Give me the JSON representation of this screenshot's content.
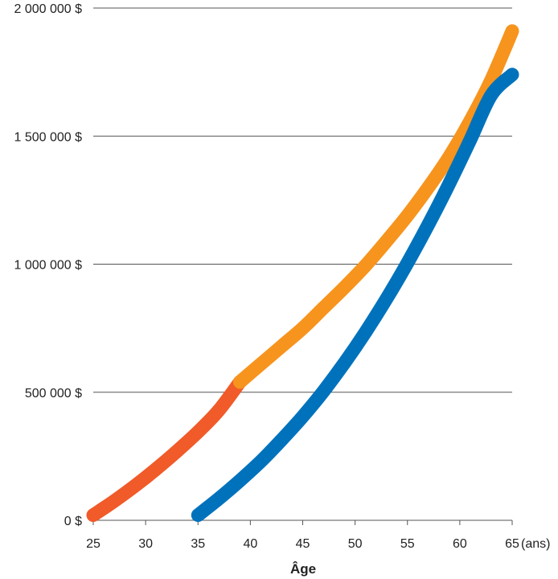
{
  "chart_data": {
    "type": "line",
    "title": "",
    "xlabel": "Âge",
    "ylabel": "",
    "x_unit_label": "(ans)",
    "xlim": [
      25,
      65
    ],
    "ylim": [
      0,
      2000000
    ],
    "x_ticks": [
      25,
      30,
      35,
      40,
      45,
      50,
      55,
      60,
      65
    ],
    "x_tick_labels": [
      "25",
      "30",
      "35",
      "40",
      "45",
      "50",
      "55",
      "60",
      "65"
    ],
    "y_ticks": [
      0,
      500000,
      1000000,
      1500000,
      2000000
    ],
    "y_tick_labels": [
      "0 $",
      "500 000 $",
      "1 000 000 $",
      "1 500 000 $",
      "2 000 000 $"
    ],
    "grid": "horizontal",
    "legend": "none",
    "series": [
      {
        "color": "#f15a29",
        "x": [
          25,
          27,
          29,
          31,
          33,
          35,
          37,
          39
        ],
        "y": [
          20000,
          75000,
          135000,
          200000,
          270000,
          345000,
          430000,
          540000
        ]
      },
      {
        "color": "#f7941d",
        "x": [
          39,
          41,
          43,
          45,
          47,
          49,
          51,
          53,
          55,
          57,
          59,
          61,
          63,
          65
        ],
        "y": [
          540000,
          610000,
          680000,
          750000,
          830000,
          910000,
          995000,
          1090000,
          1190000,
          1300000,
          1420000,
          1560000,
          1720000,
          1910000
        ]
      },
      {
        "color": "#0072bc",
        "x": [
          35,
          37,
          39,
          41,
          43,
          45,
          47,
          49,
          51,
          53,
          55,
          57,
          59,
          61,
          63,
          65
        ],
        "y": [
          20000,
          85000,
          155000,
          230000,
          315000,
          405000,
          505000,
          615000,
          735000,
          865000,
          1005000,
          1155000,
          1315000,
          1485000,
          1660000,
          1740000
        ]
      }
    ]
  }
}
